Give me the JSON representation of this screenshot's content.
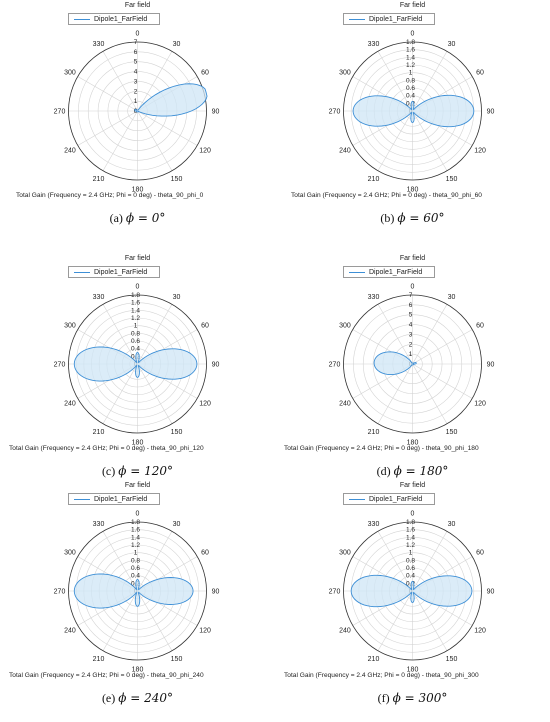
{
  "colors": {
    "trace": "#3d8fd6",
    "fill": "#cfe5f6",
    "grid": "#d4d4d4",
    "axis": "#333333",
    "marker_box": "#5aa7e2"
  },
  "chart_data": [
    {
      "type": "polar",
      "title": "Far field",
      "legend": "Dipole1_FarField",
      "subtitle": "Total Gain (Frequency = 2.4 GHz; Phi = 0 deg) - theta_90_phi_0",
      "caption_label": "(a)",
      "caption_phi": "ϕ = 0°",
      "radial_ticks": [
        "0",
        "1",
        "2",
        "3",
        "4",
        "5",
        "6",
        "7"
      ],
      "rmax": 7,
      "angle_ticks": [
        "0",
        "30",
        "60",
        "90",
        "120",
        "150",
        "180",
        "210",
        "240",
        "270",
        "300",
        "330"
      ],
      "lobes": [
        {
          "center_deg": 75,
          "peak": 7.3,
          "width_deg": 28
        },
        {
          "center_deg": 290,
          "peak": 0.3,
          "width_deg": 35
        }
      ],
      "floor": 0.1
    },
    {
      "type": "polar",
      "title": "Far field",
      "legend": "Dipole1_FarField",
      "subtitle": "Total Gain (Frequency = 2.4 GHz; Phi = 0 deg) - theta_90_phi_60",
      "caption_label": "(b)",
      "caption_phi": "ϕ = 60°",
      "radial_ticks": [
        "0",
        "0.2",
        "0.4",
        "0.6",
        "0.8",
        "1",
        "1.2",
        "1.4",
        "1.6",
        "1.8"
      ],
      "rmax": 1.8,
      "angle_ticks": [
        "0",
        "30",
        "60",
        "90",
        "120",
        "150",
        "180",
        "210",
        "240",
        "270",
        "300",
        "330"
      ],
      "lobes": [
        {
          "center_deg": 90,
          "peak": 1.6,
          "width_deg": 36
        },
        {
          "center_deg": 270,
          "peak": 1.55,
          "width_deg": 36
        },
        {
          "center_deg": 180,
          "peak": 0.3,
          "width_deg": 20
        },
        {
          "center_deg": 0,
          "peak": 0.25,
          "width_deg": 20
        }
      ],
      "floor": 0.05
    },
    {
      "type": "polar",
      "title": "Far field",
      "legend": "Dipole1_FarField",
      "subtitle": "Total Gain (Frequency = 2.4 GHz; Phi = 0 deg) - theta_90_phi_120",
      "caption_label": "(c)",
      "caption_phi": "ϕ = 120°",
      "radial_ticks": [
        "0",
        "0.2",
        "0.4",
        "0.6",
        "0.8",
        "1",
        "1.2",
        "1.4",
        "1.6",
        "1.8"
      ],
      "rmax": 1.8,
      "angle_ticks": [
        "0",
        "30",
        "60",
        "90",
        "120",
        "150",
        "180",
        "210",
        "240",
        "270",
        "300",
        "330"
      ],
      "lobes": [
        {
          "center_deg": 270,
          "peak": 1.65,
          "width_deg": 38
        },
        {
          "center_deg": 90,
          "peak": 1.55,
          "width_deg": 36
        },
        {
          "center_deg": 180,
          "peak": 0.35,
          "width_deg": 20
        },
        {
          "center_deg": 0,
          "peak": 0.3,
          "width_deg": 20
        }
      ],
      "floor": 0.05
    },
    {
      "type": "polar",
      "title": "Far field",
      "legend": "Dipole1_FarField",
      "subtitle": "Total Gain (Frequency = 2.4 GHz; Phi = 0 deg) - theta_90_phi_180",
      "caption_label": "(d)",
      "caption_phi": "ϕ = 180°",
      "radial_ticks": [
        "0",
        "1",
        "2",
        "3",
        "4",
        "5",
        "6",
        "7"
      ],
      "rmax": 7,
      "angle_ticks": [
        "0",
        "30",
        "60",
        "90",
        "120",
        "150",
        "180",
        "210",
        "240",
        "270",
        "300",
        "330"
      ],
      "lobes": [
        {
          "center_deg": 272,
          "peak": 3.9,
          "width_deg": 42
        },
        {
          "center_deg": 75,
          "peak": 0.4,
          "width_deg": 25
        }
      ],
      "floor": 0.1
    },
    {
      "type": "polar",
      "title": "Far field",
      "legend": "Dipole1_FarField",
      "subtitle": "Total Gain (Frequency = 2.4 GHz; Phi = 0 deg) - theta_90_phi_240",
      "caption_label": "(e)",
      "caption_phi": "ϕ = 240°",
      "radial_ticks": [
        "0",
        "0.2",
        "0.4",
        "0.6",
        "0.8",
        "1",
        "1.2",
        "1.4",
        "1.6",
        "1.8"
      ],
      "rmax": 1.8,
      "angle_ticks": [
        "0",
        "30",
        "60",
        "90",
        "120",
        "150",
        "180",
        "210",
        "240",
        "270",
        "300",
        "330"
      ],
      "lobes": [
        {
          "center_deg": 270,
          "peak": 1.65,
          "width_deg": 38
        },
        {
          "center_deg": 90,
          "peak": 1.45,
          "width_deg": 34
        },
        {
          "center_deg": 180,
          "peak": 0.4,
          "width_deg": 20
        },
        {
          "center_deg": 0,
          "peak": 0.3,
          "width_deg": 20
        }
      ],
      "floor": 0.05
    },
    {
      "type": "polar",
      "title": "Far field",
      "legend": "Dipole1_FarField",
      "subtitle": "Total Gain (Frequency = 2.4 GHz; Phi = 0 deg) - theta_90_phi_300",
      "caption_label": "(f)",
      "caption_phi": "ϕ = 300°",
      "radial_ticks": [
        "0",
        "0.2",
        "0.4",
        "0.6",
        "0.8",
        "1",
        "1.2",
        "1.4",
        "1.6",
        "1.8"
      ],
      "rmax": 1.8,
      "angle_ticks": [
        "0",
        "30",
        "60",
        "90",
        "120",
        "150",
        "180",
        "210",
        "240",
        "270",
        "300",
        "330"
      ],
      "lobes": [
        {
          "center_deg": 270,
          "peak": 1.6,
          "width_deg": 36
        },
        {
          "center_deg": 90,
          "peak": 1.55,
          "width_deg": 36
        },
        {
          "center_deg": 180,
          "peak": 0.3,
          "width_deg": 20
        },
        {
          "center_deg": 0,
          "peak": 0.25,
          "width_deg": 20
        }
      ],
      "floor": 0.05
    }
  ]
}
